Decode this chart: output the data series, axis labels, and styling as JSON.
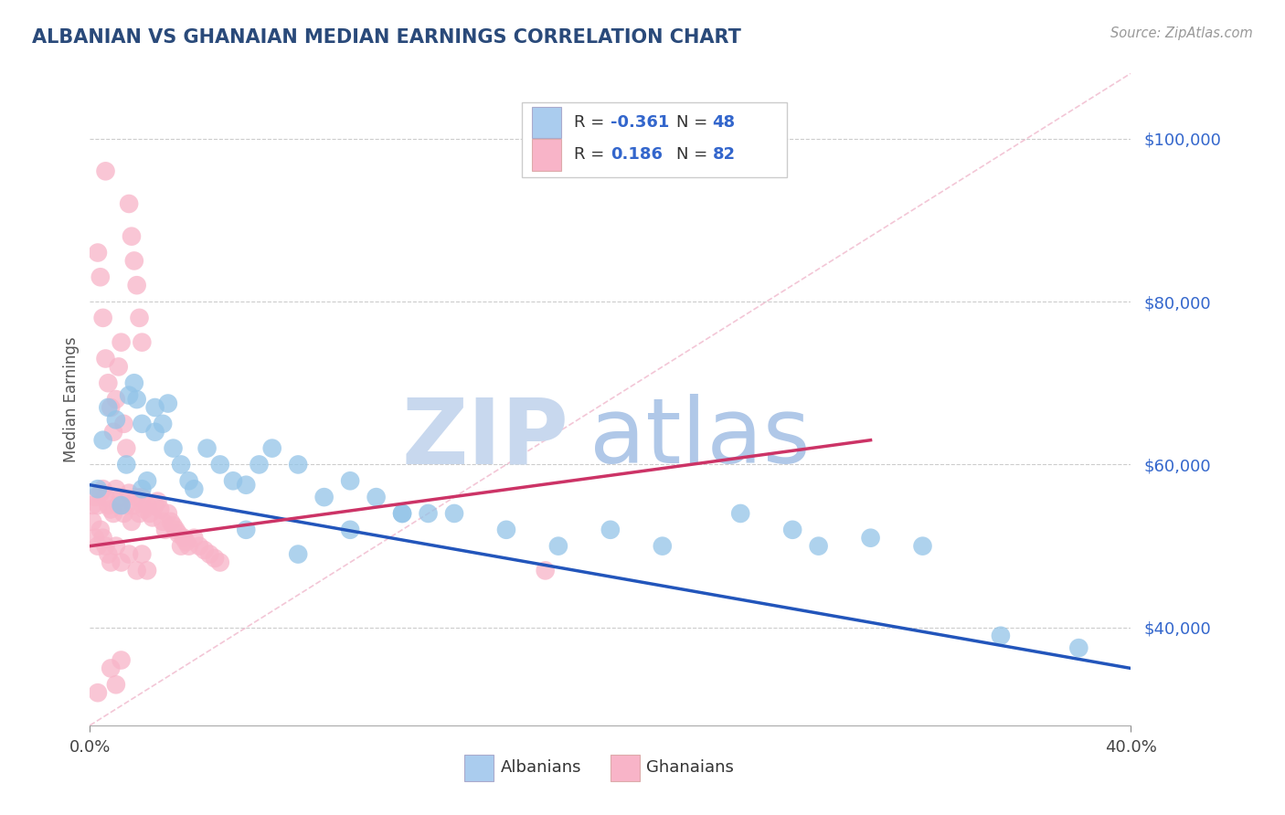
{
  "title": "ALBANIAN VS GHANAIAN MEDIAN EARNINGS CORRELATION CHART",
  "source_text": "Source: ZipAtlas.com",
  "ylabel": "Median Earnings",
  "y_tick_labels": [
    "$40,000",
    "$60,000",
    "$80,000",
    "$100,000"
  ],
  "y_tick_values": [
    40000,
    60000,
    80000,
    100000
  ],
  "ylim": [
    28000,
    108000
  ],
  "xlim": [
    0.0,
    0.4
  ],
  "blue_R": -0.361,
  "blue_N": 48,
  "pink_R": 0.186,
  "pink_N": 82,
  "blue_color": "#93c4e8",
  "pink_color": "#f8b4c8",
  "blue_line_color": "#2255bb",
  "pink_line_color": "#cc3366",
  "diag_line_color": "#f0b8cc",
  "background_color": "#ffffff",
  "title_color": "#2a4a7a",
  "watermark_zip_color": "#c8d8ee",
  "watermark_atlas_color": "#b0c8e8",
  "legend_bg": "#ffffff",
  "legend_border": "#cccccc",
  "blue_legend_color": "#aaccee",
  "pink_legend_color": "#f8b4c8",
  "blue_scatter_x": [
    0.003,
    0.005,
    0.007,
    0.01,
    0.012,
    0.014,
    0.015,
    0.017,
    0.018,
    0.02,
    0.02,
    0.022,
    0.025,
    0.025,
    0.028,
    0.03,
    0.032,
    0.035,
    0.038,
    0.04,
    0.045,
    0.05,
    0.055,
    0.06,
    0.065,
    0.07,
    0.08,
    0.09,
    0.1,
    0.11,
    0.12,
    0.13,
    0.14,
    0.16,
    0.18,
    0.2,
    0.22,
    0.25,
    0.27,
    0.28,
    0.3,
    0.32,
    0.35,
    0.38,
    0.06,
    0.08,
    0.1,
    0.12
  ],
  "blue_scatter_y": [
    57000,
    63000,
    67000,
    65500,
    55000,
    60000,
    68500,
    70000,
    68000,
    65000,
    57000,
    58000,
    64000,
    67000,
    65000,
    67500,
    62000,
    60000,
    58000,
    57000,
    62000,
    60000,
    58000,
    57500,
    60000,
    62000,
    60000,
    56000,
    58000,
    56000,
    54000,
    54000,
    54000,
    52000,
    50000,
    52000,
    50000,
    54000,
    52000,
    50000,
    51000,
    50000,
    39000,
    37500,
    52000,
    49000,
    52000,
    54000
  ],
  "pink_scatter_x": [
    0.001,
    0.001,
    0.002,
    0.002,
    0.003,
    0.003,
    0.004,
    0.004,
    0.005,
    0.005,
    0.006,
    0.006,
    0.007,
    0.007,
    0.008,
    0.008,
    0.009,
    0.01,
    0.01,
    0.011,
    0.012,
    0.012,
    0.013,
    0.014,
    0.015,
    0.015,
    0.016,
    0.017,
    0.018,
    0.018,
    0.019,
    0.02,
    0.02,
    0.021,
    0.022,
    0.022,
    0.023,
    0.024,
    0.025,
    0.026,
    0.027,
    0.028,
    0.029,
    0.03,
    0.031,
    0.032,
    0.033,
    0.034,
    0.035,
    0.036,
    0.037,
    0.038,
    0.04,
    0.042,
    0.044,
    0.046,
    0.048,
    0.05,
    0.003,
    0.004,
    0.005,
    0.006,
    0.007,
    0.008,
    0.009,
    0.01,
    0.011,
    0.012,
    0.013,
    0.014,
    0.015,
    0.016,
    0.017,
    0.018,
    0.019,
    0.02,
    0.175,
    0.008,
    0.01,
    0.012,
    0.006,
    0.003
  ],
  "pink_scatter_y": [
    55000,
    53000,
    56000,
    51000,
    55000,
    50000,
    56500,
    52000,
    57000,
    51000,
    56000,
    50000,
    55000,
    49000,
    54500,
    48000,
    54000,
    57000,
    50000,
    55000,
    56000,
    48000,
    54000,
    55000,
    56500,
    49000,
    53000,
    55000,
    56000,
    47000,
    54000,
    56000,
    49000,
    54500,
    55000,
    47000,
    54000,
    53500,
    55000,
    55500,
    54500,
    53000,
    52000,
    54000,
    53000,
    52500,
    52000,
    51500,
    50000,
    51000,
    50500,
    50000,
    51000,
    50000,
    49500,
    49000,
    48500,
    48000,
    86000,
    83000,
    78000,
    73000,
    70000,
    67000,
    64000,
    68000,
    72000,
    75000,
    65000,
    62000,
    92000,
    88000,
    85000,
    82000,
    78000,
    75000,
    47000,
    35000,
    33000,
    36000,
    96000,
    32000
  ]
}
